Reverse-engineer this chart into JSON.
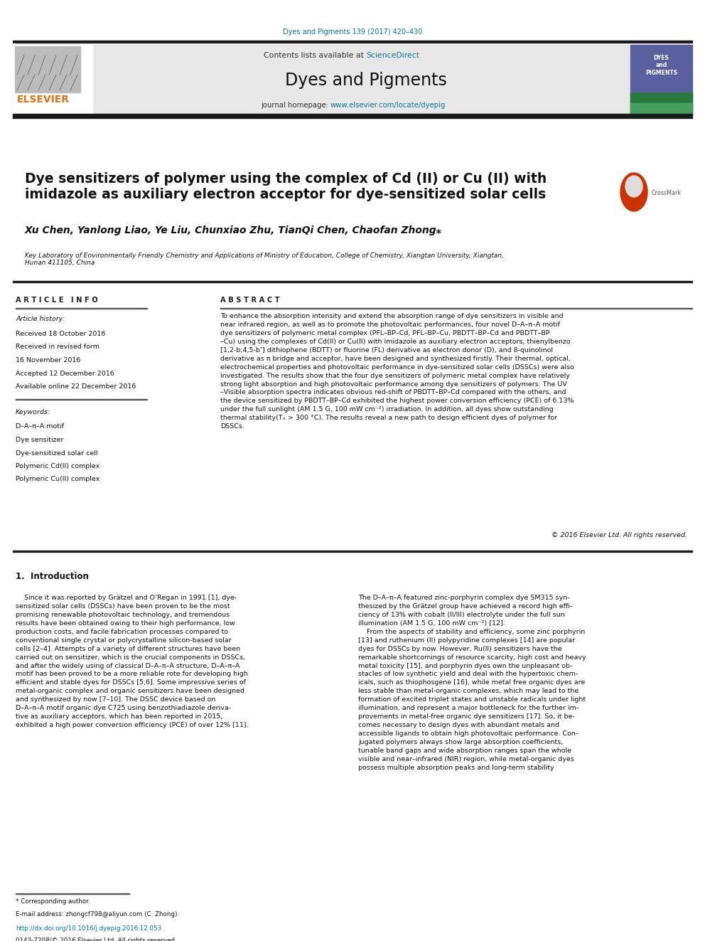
{
  "page_width": 9.92,
  "page_height": 13.23,
  "bg_color": "#ffffff",
  "journal_ref": "Dyes and Pigments 139 (2017) 420–430",
  "journal_ref_color": "#007b9e",
  "header_bg": "#e8e8e8",
  "sciencedirect_text": "ScienceDirect",
  "sciencedirect_color": "#007b9e",
  "journal_title": "Dyes and Pigments",
  "journal_homepage_prefix": "journal homepage: ",
  "journal_homepage_url": "www.elsevier.com/locate/dyepig",
  "journal_homepage_color": "#007b9e",
  "dark_bar_color": "#1a1a1a",
  "article_title": "Dye sensitizers of polymer using the complex of Cd (II) or Cu (II) with\nimidazole as auxiliary electron acceptor for dye-sensitized solar cells",
  "authors": "Xu Chen, Yanlong Liao, Ye Liu, Chunxiao Zhu, TianQi Chen, Chaofan Zhong",
  "affiliation": "Key Laboratory of Environmentally Friendly Chemistry and Applications of Ministry of Education, College of Chemistry, Xiangtan University, Xiangtan,\nHunan 411105, China",
  "article_info_title": "A R T I C L E   I N F O",
  "abstract_title": "A B S T R A C T",
  "article_history_label": "Article history:",
  "received1": "Received 18 October 2016",
  "received2": "Received in revised form",
  "received2b": "16 November 2016",
  "accepted": "Accepted 12 December 2016",
  "available": "Available online 22 December 2016",
  "keywords_label": "Keywords:",
  "keywords": [
    "D–A–π–A motif",
    "Dye sensitizer",
    "Dye-sensitized solar cell",
    "Polymeric Cd(II) complex",
    "Polymeric Cu(II) complex"
  ],
  "abstract_text": "To enhance the absorption intensity and extend the absorption range of dye sensitizers in visible and\nnear infrared region, as well as to promote the photovoltaic performances, four novel D–A–π–A motif\ndye sensitizers of polymeric metal complex (PFL–BP–Cd, PFL–BP–Cu, PBDTT–BP–Cd and PBDTT–BP\n–Cu) using the complexes of Cd(II) or Cu(II) with imidazole as auxiliary electron acceptors, thienylbenzo\n[1,2-b;4,5-b’] dithiophene (BDTT) or fluorine (FL) derivative as electron donor (D), and 8-quinolinol\nderivative as π bridge and acceptor, have been designed and synthesized firstly. Their thermal, optical,\nelectrochemical properties and photovoltaic performance in dye-sensitized solar cells (DSSCs) were also\ninvestigated. The results show that the four dye sensitizers of polymeric metal complex have relatively\nstrong light absorption and high photovoltaic performance among dye sensitizers of polymers. The UV\n–Visible absorption spectra indicates obvious red-shift of PBDTT–BP–Cd compared with the others, and\nthe device sensitized by PBDTT–BP–Cd exhibited the highest power conversion efficiency (PCE) of 6.13%\nunder the full sunlight (AM 1.5 G, 100 mW cm⁻²) irradiation. In addition, all dyes show outstanding\nthermal stability(Tₓ > 300 °C). The results reveal a new path to design efficient dyes of polymer for\nDSSCs.",
  "copyright_text": "© 2016 Elsevier Ltd. All rights reserved.",
  "intro_heading": "1.  Introduction",
  "intro_col1": "    Since it was reported by Grätzel and O’Regan in 1991 [1], dye-\nsensitized solar cells (DSSCs) have been proven to be the most\npromising renewable photovoltaic technology, and tremendous\nresults have been obtained owing to their high performance, low\nproduction costs, and facile fabrication processes compared to\nconventional single crystal or polycrystalline silicon-based solar\ncells [2–4]. Attempts of a variety of different structures have been\ncarried out on sensitizer, which is the crucial components in DSSCs,\nand after the widely using of classical D–A–π–A structure, D–A–π–A\nmotif has been proved to be a more reliable rote for developing high\nefficient and stable dyes for DSSCs [5,6]. Some impressive series of\nmetal-organic complex and organic sensitizers have been designed\nand synthesized by now [7–10]. The DSSC device based on\nD–A–π–A motif organic dye C725 using benzothiadiazole deriva-\ntive as auxiliary acceptors, which has been reported in 2015,\nexhibited a high power conversion efficiency (PCE) of over 12% [11].",
  "intro_col2": "The D–A–π–A featured zinc-porphyrin complex dye SM315 syn-\nthesized by the Grätzel group have achieved a record high effi-\nciency of 13% with cobalt (II/III) electrolyte under the full sun\nillumination (AM 1.5 G, 100 mW cm⁻²) [12].\n    From the aspects of stability and efficiency, some zinc porphyrin\n[13] and ruthenium (II) polypyridine complexes [14] are popular\ndyes for DSSCs by now. However, Ru(II) sensitizers have the\nremarkable shortcomings of resource scarcity, high cost and heavy\nmetal toxicity [15], and porphyrin dyes own the unpleasant ob-\nstacles of low synthetic yield and deal with the hypertoxic chem-\nicals, such as thiophosgene [16], while metal free organic dyes are\nless stable than metal-organic complexes, which may lead to the\nformation of excited triplet states and unstable radicals under light\nillumination, and represent a major bottleneck for the further im-\nprovements in metal-free organic dye sensitizers [17]. So, it be-\ncomes necessary to design dyes with abundant metals and\naccessible ligands to obtain high photovoltaic performance. Con-\njugated polymers always show large absorption coefficients,\ntunable band gaps and wide absorption ranges span the whole\nvisible and near–infrared (NIR) region, while metal-organic dyes\npossess multiple absorption peaks and long-term stability",
  "footnote_star": "* Corresponding author.",
  "footnote_email": "E-mail address: zhongcf798@aliyun.com (C. Zhong).",
  "footnote_doi": "http://dx.doi.org/10.1016/j.dyepig.2016.12.053",
  "footnote_issn": "0143-7208/© 2016 Elsevier Ltd. All rights reserved."
}
